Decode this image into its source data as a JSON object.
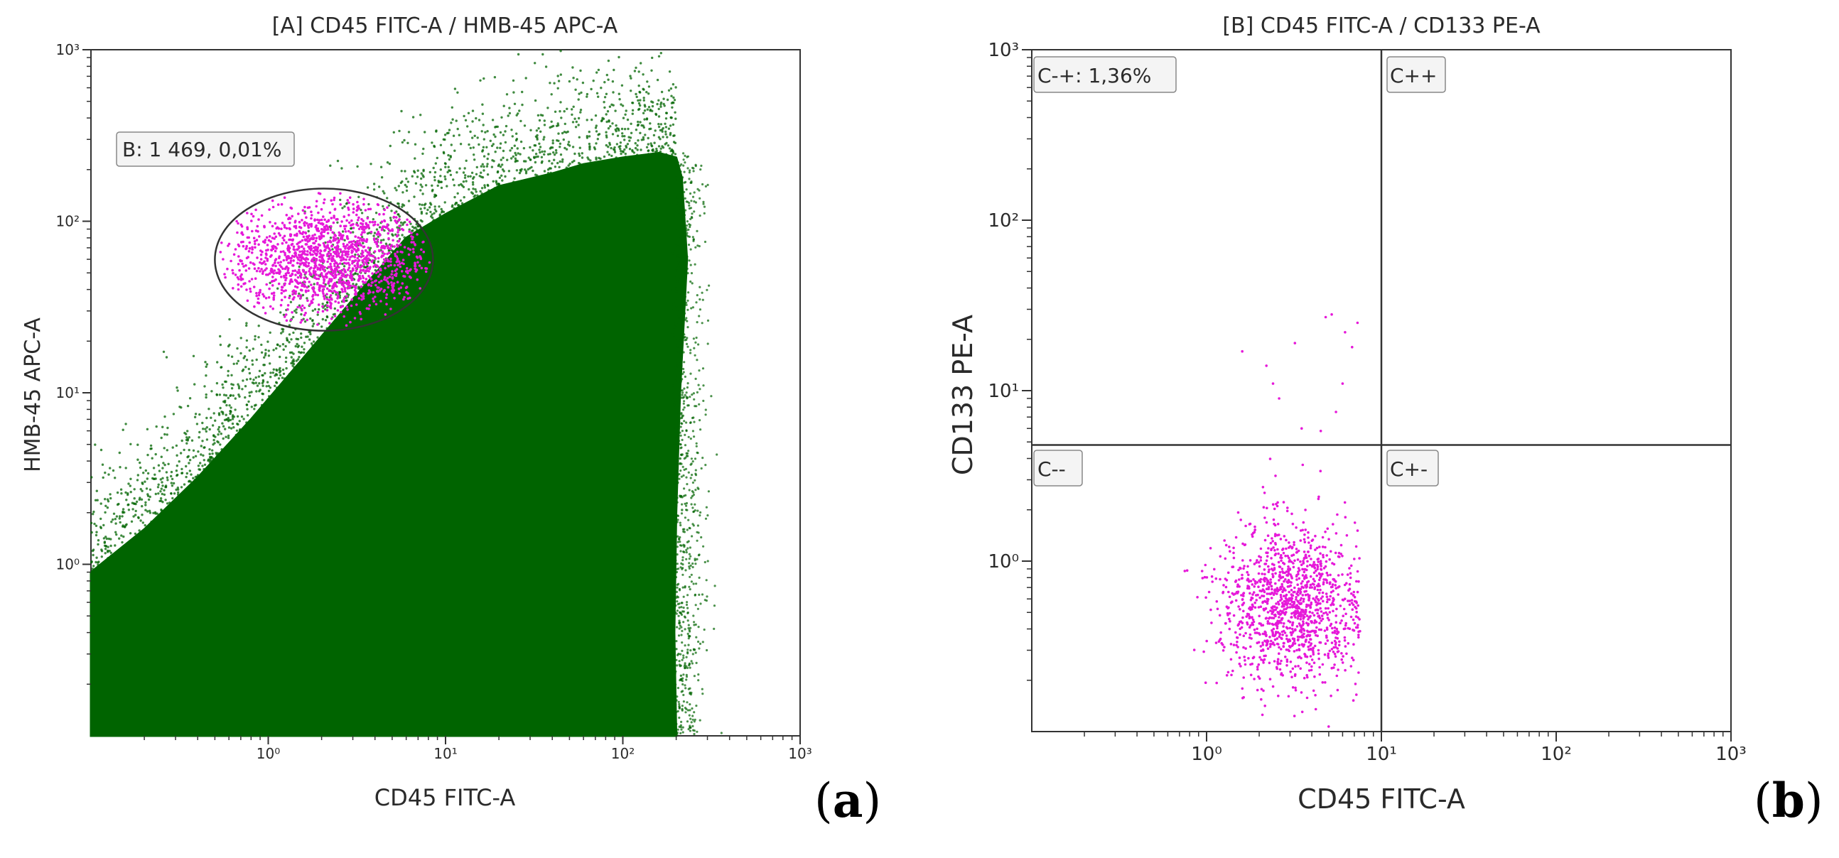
{
  "chart_data": [
    {
      "panel": "a",
      "type": "scatter",
      "title": "[A] CD45 FITC-A / HMB-45 APC-A",
      "xlabel": "CD45 FITC-A",
      "ylabel": "HMB-45 APC-A",
      "xscale": "log",
      "yscale": "log",
      "xlim": [
        0.1,
        1000
      ],
      "ylim": [
        0.1,
        1000
      ],
      "xticks": [
        {
          "value": 1,
          "label": "10⁰"
        },
        {
          "value": 10,
          "label": "10¹"
        },
        {
          "value": 100,
          "label": "10²"
        },
        {
          "value": 1000,
          "label": "10³"
        }
      ],
      "yticks": [
        {
          "value": 1,
          "label": "10⁰"
        },
        {
          "value": 10,
          "label": "10¹"
        },
        {
          "value": 100,
          "label": "10²"
        },
        {
          "value": 1000,
          "label": "10³"
        }
      ],
      "gates": [
        {
          "name": "B",
          "shape": "ellipse",
          "label": "B: 1 469, 0,01%",
          "center": [
            2.0,
            60
          ],
          "x_range": [
            0.5,
            8.5
          ],
          "y_range": [
            23,
            155
          ]
        }
      ],
      "populations": [
        {
          "name": "all events",
          "color": "#006400",
          "density": "dense",
          "description": "bulk population from low left up to CD45 ~200, upper boundary rising with CD45"
        },
        {
          "name": "B gate",
          "color": "#e619d9",
          "count_label": "1 469",
          "center": [
            2.2,
            60
          ]
        }
      ],
      "panel_letter": "(a)"
    },
    {
      "panel": "b",
      "type": "scatter",
      "title": "[B] CD45 FITC-A / CD133 PE-A",
      "xlabel": "CD45 FITC-A",
      "ylabel": "CD133 PE-A",
      "xscale": "log",
      "yscale": "log",
      "xlim": [
        0.1,
        1000
      ],
      "ylim": [
        0.1,
        1000
      ],
      "xticks": [
        {
          "value": 1,
          "label": "10⁰"
        },
        {
          "value": 10,
          "label": "10¹"
        },
        {
          "value": 100,
          "label": "10²"
        },
        {
          "value": 1000,
          "label": "10³"
        }
      ],
      "yticks": [
        {
          "value": 1,
          "label": "10⁰"
        },
        {
          "value": 10,
          "label": "10¹"
        },
        {
          "value": 100,
          "label": "10²"
        },
        {
          "value": 1000,
          "label": "10³"
        }
      ],
      "quadrant_split": {
        "x": 10,
        "y": 4.8
      },
      "quadrants": [
        {
          "name": "C-+",
          "label": "C-+: 1,36%",
          "position": "top-left"
        },
        {
          "name": "C++",
          "label": "C++",
          "position": "top-right"
        },
        {
          "name": "C--",
          "label": "C--",
          "position": "bottom-left"
        },
        {
          "name": "C+-",
          "label": "C+-",
          "position": "bottom-right"
        }
      ],
      "populations": [
        {
          "name": "B gate events",
          "color": "#e619d9",
          "center": [
            3.0,
            0.55
          ]
        }
      ],
      "panel_letter": "(b)"
    }
  ],
  "colors": {
    "green": "#006400",
    "magenta": "#e619d9",
    "axis": "#333333"
  }
}
